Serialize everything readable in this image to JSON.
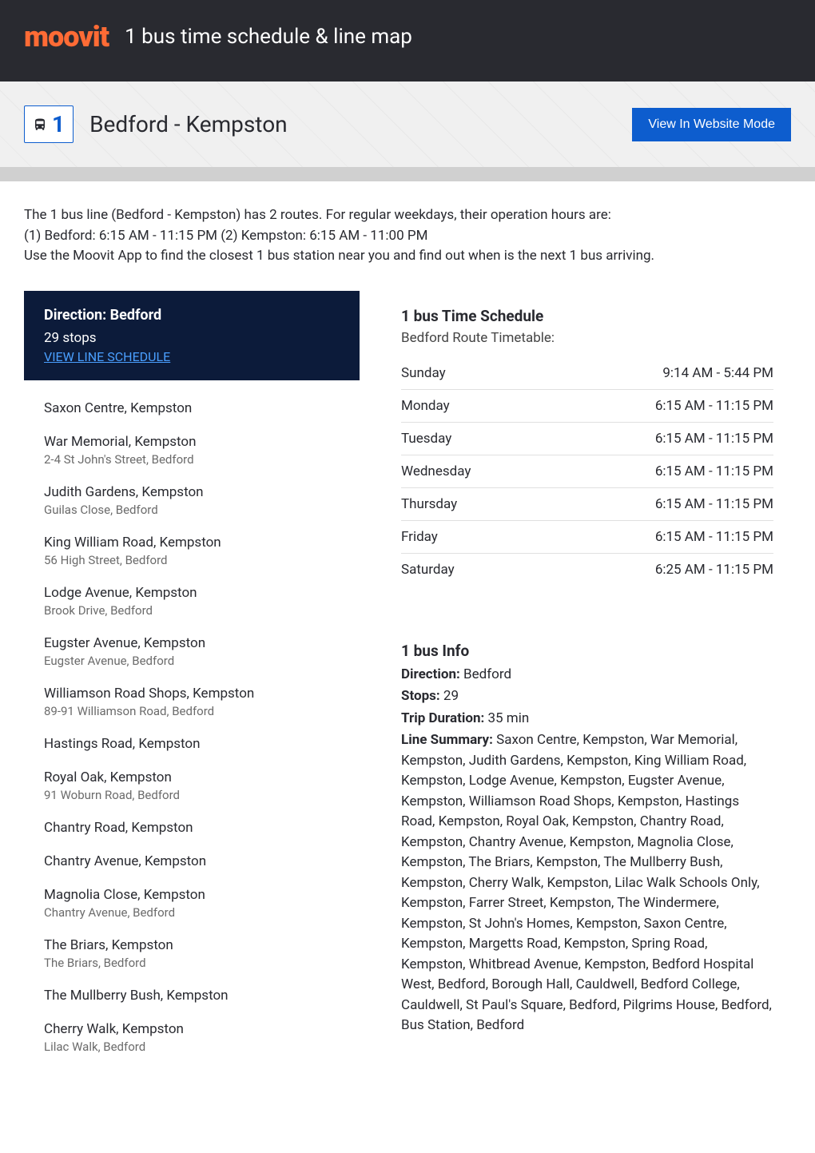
{
  "header": {
    "logo": "moovit",
    "title": "1 bus time schedule & line map"
  },
  "route": {
    "number": "1",
    "name": "Bedford - Kempston",
    "website_button": "View In Website Mode"
  },
  "intro": {
    "line1": "The 1 bus line (Bedford - Kempston) has 2 routes. For regular weekdays, their operation hours are:",
    "line2": "(1) Bedford: 6:15 AM - 11:15 PM (2) Kempston: 6:15 AM - 11:00 PM",
    "line3": "Use the Moovit App to find the closest 1 bus station near you and find out when is the next 1 bus arriving."
  },
  "direction": {
    "title": "Direction: Bedford",
    "stops_count": "29 stops",
    "schedule_link": "VIEW LINE SCHEDULE"
  },
  "stops": [
    {
      "name": "Saxon Centre, Kempston",
      "address": ""
    },
    {
      "name": "War Memorial, Kempston",
      "address": "2-4 St John's Street, Bedford"
    },
    {
      "name": "Judith Gardens, Kempston",
      "address": "Guilas Close, Bedford"
    },
    {
      "name": "King William Road, Kempston",
      "address": "56 High Street, Bedford"
    },
    {
      "name": "Lodge Avenue, Kempston",
      "address": "Brook Drive, Bedford"
    },
    {
      "name": "Eugster Avenue, Kempston",
      "address": "Eugster Avenue, Bedford"
    },
    {
      "name": "Williamson Road Shops, Kempston",
      "address": "89-91 Williamson Road, Bedford"
    },
    {
      "name": "Hastings Road, Kempston",
      "address": ""
    },
    {
      "name": "Royal Oak, Kempston",
      "address": "91 Woburn Road, Bedford"
    },
    {
      "name": "Chantry Road, Kempston",
      "address": ""
    },
    {
      "name": "Chantry Avenue, Kempston",
      "address": ""
    },
    {
      "name": "Magnolia Close, Kempston",
      "address": "Chantry Avenue, Bedford"
    },
    {
      "name": "The Briars, Kempston",
      "address": "The Briars, Bedford"
    },
    {
      "name": "The Mullberry Bush, Kempston",
      "address": ""
    },
    {
      "name": "Cherry Walk, Kempston",
      "address": "Lilac Walk, Bedford"
    }
  ],
  "timetable": {
    "title": "1 bus Time Schedule",
    "subtitle": "Bedford Route Timetable:",
    "rows": [
      {
        "day": "Sunday",
        "hours": "9:14 AM - 5:44 PM"
      },
      {
        "day": "Monday",
        "hours": "6:15 AM - 11:15 PM"
      },
      {
        "day": "Tuesday",
        "hours": "6:15 AM - 11:15 PM"
      },
      {
        "day": "Wednesday",
        "hours": "6:15 AM - 11:15 PM"
      },
      {
        "day": "Thursday",
        "hours": "6:15 AM - 11:15 PM"
      },
      {
        "day": "Friday",
        "hours": "6:15 AM - 11:15 PM"
      },
      {
        "day": "Saturday",
        "hours": "6:25 AM - 11:15 PM"
      }
    ]
  },
  "businfo": {
    "title": "1 bus Info",
    "direction_label": "Direction:",
    "direction_value": "Bedford",
    "stops_label": "Stops:",
    "stops_value": "29",
    "duration_label": "Trip Duration:",
    "duration_value": "35 min",
    "summary_label": "Line Summary:",
    "summary_value": "Saxon Centre, Kempston, War Memorial, Kempston, Judith Gardens, Kempston, King William Road, Kempston, Lodge Avenue, Kempston, Eugster Avenue, Kempston, Williamson Road Shops, Kempston, Hastings Road, Kempston, Royal Oak, Kempston, Chantry Road, Kempston, Chantry Avenue, Kempston, Magnolia Close, Kempston, The Briars, Kempston, The Mullberry Bush, Kempston, Cherry Walk, Kempston, Lilac Walk Schools Only, Kempston, Farrer Street, Kempston, The Windermere, Kempston, St John's Homes, Kempston, Saxon Centre, Kempston, Margetts Road, Kempston, Spring Road, Kempston, Whitbread Avenue, Kempston, Bedford Hospital West, Bedford, Borough Hall, Cauldwell, Bedford College, Cauldwell, St Paul's Square, Bedford, Pilgrims House, Bedford, Bus Station, Bedford"
  },
  "colors": {
    "brand_orange": "#ff6b35",
    "dark_bg": "#292a30",
    "navy": "#0c1b3a",
    "blue": "#0d5dce",
    "link_blue": "#4a9fff"
  }
}
